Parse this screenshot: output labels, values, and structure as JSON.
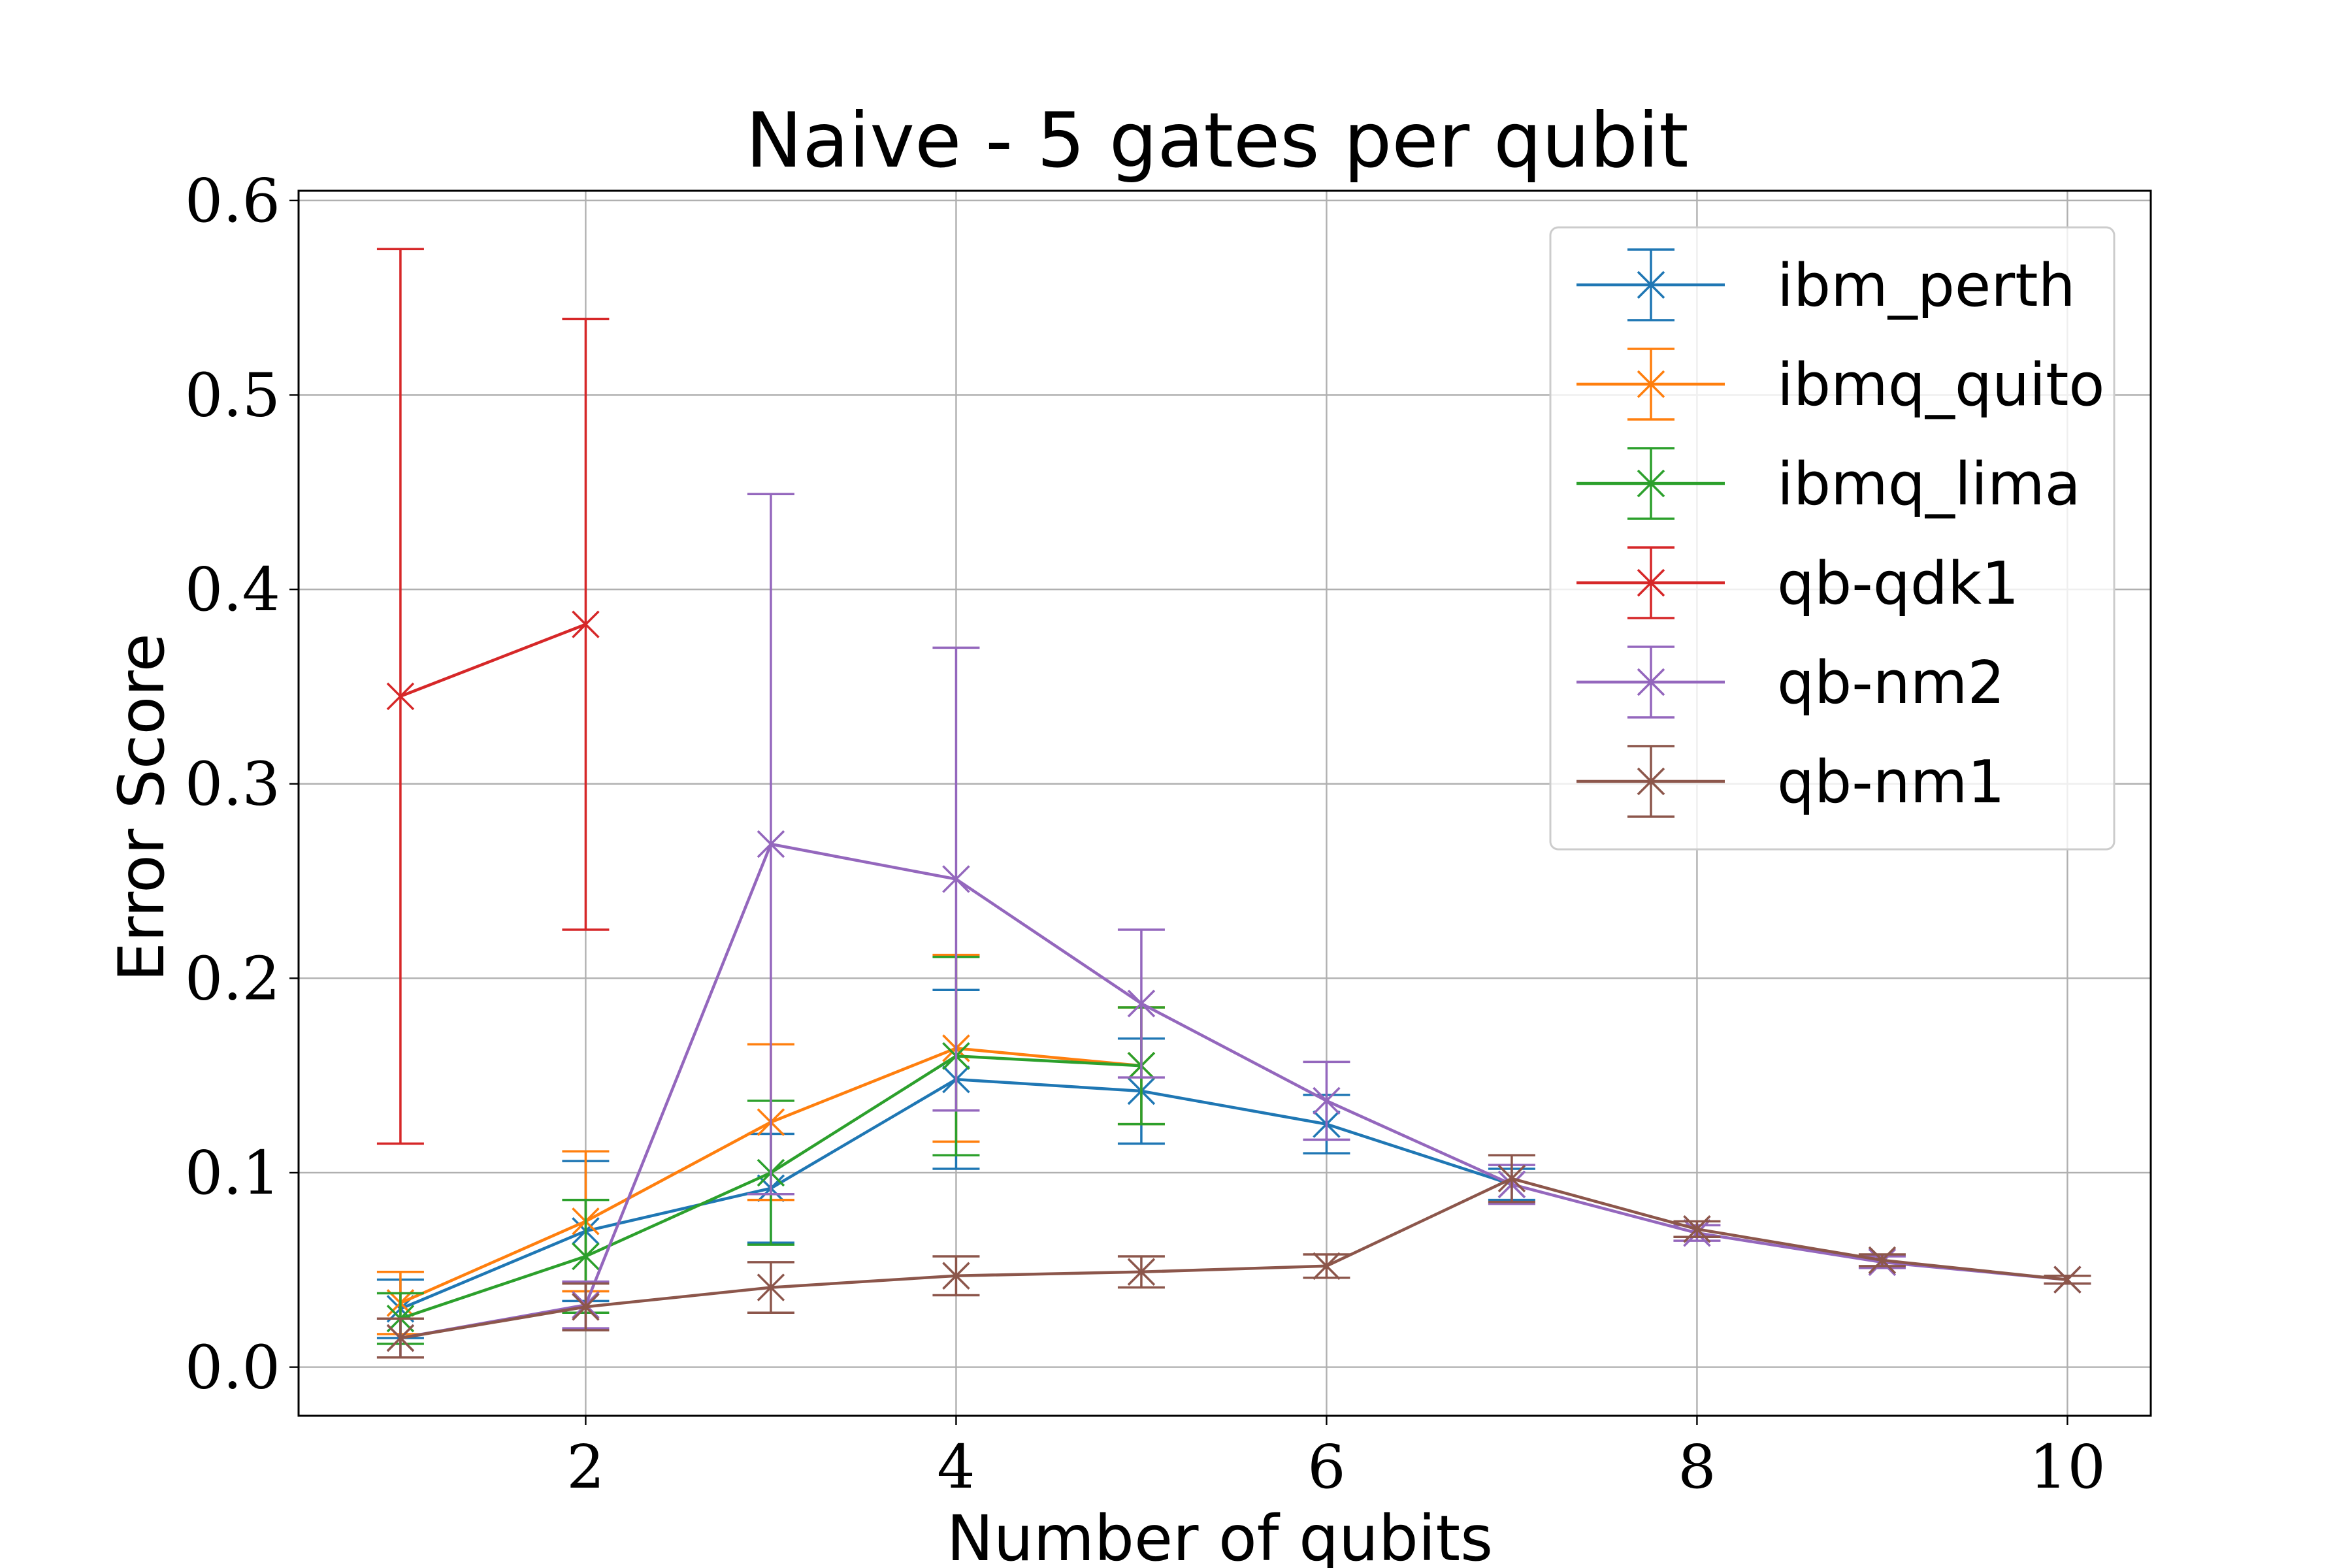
{
  "chart_data": {
    "type": "line",
    "title": "Naive - 5 gates per qubit",
    "xlabel": "Number of qubits",
    "ylabel": "Error Score",
    "xlim": [
      0.45,
      10.45
    ],
    "ylim": [
      -0.025,
      0.605
    ],
    "xticks": [
      2,
      4,
      6,
      8,
      10
    ],
    "yticks": [
      0.0,
      0.1,
      0.2,
      0.3,
      0.4,
      0.5,
      0.6
    ],
    "xtick_labels": [
      "2",
      "4",
      "6",
      "8",
      "10"
    ],
    "ytick_labels": [
      "0.0",
      "0.1",
      "0.2",
      "0.3",
      "0.4",
      "0.5",
      "0.6"
    ],
    "grid": true,
    "legend_position": "top-right",
    "marker": "x",
    "series": [
      {
        "name": "ibm_perth",
        "color": "#1f77b4",
        "x": [
          1,
          2,
          3,
          4,
          5,
          6,
          7
        ],
        "y": [
          0.03,
          0.07,
          0.092,
          0.148,
          0.142,
          0.125,
          0.094
        ],
        "yerr": [
          0.015,
          0.036,
          0.028,
          0.046,
          0.027,
          0.015,
          0.008
        ]
      },
      {
        "name": "ibmq_quito",
        "color": "#ff7f0e",
        "x": [
          1,
          2,
          3,
          4,
          5
        ],
        "y": [
          0.033,
          0.075,
          0.126,
          0.164,
          0.155
        ],
        "yerr": [
          0.016,
          0.036,
          0.04,
          0.048,
          0.03
        ]
      },
      {
        "name": "ibmq_lima",
        "color": "#2ca02c",
        "x": [
          1,
          2,
          3,
          4,
          5
        ],
        "y": [
          0.025,
          0.057,
          0.1,
          0.16,
          0.155
        ],
        "yerr": [
          0.013,
          0.029,
          0.037,
          0.051,
          0.03
        ]
      },
      {
        "name": "qb-qdk1",
        "color": "#d62728",
        "x": [
          1,
          2
        ],
        "y": [
          0.345,
          0.382
        ],
        "yerr": [
          0.23,
          0.157
        ]
      },
      {
        "name": "qb-nm2",
        "color": "#9467bd",
        "x": [
          1,
          2,
          3,
          4,
          5,
          6,
          7,
          8,
          9,
          10
        ],
        "y": [
          0.015,
          0.032,
          0.269,
          0.251,
          0.187,
          0.137,
          0.094,
          0.069,
          0.054,
          0.045
        ],
        "yerr": [
          0.01,
          0.012,
          0.18,
          0.119,
          0.038,
          0.02,
          0.01,
          0.004,
          0.003,
          0.002
        ]
      },
      {
        "name": "qb-nm1",
        "color": "#8c564b",
        "x": [
          1,
          2,
          3,
          4,
          5,
          6,
          7,
          8,
          9,
          10
        ],
        "y": [
          0.015,
          0.031,
          0.041,
          0.047,
          0.049,
          0.052,
          0.097,
          0.071,
          0.055,
          0.045
        ],
        "yerr": [
          0.01,
          0.012,
          0.013,
          0.01,
          0.008,
          0.006,
          0.012,
          0.004,
          0.003,
          0.002
        ]
      }
    ]
  }
}
